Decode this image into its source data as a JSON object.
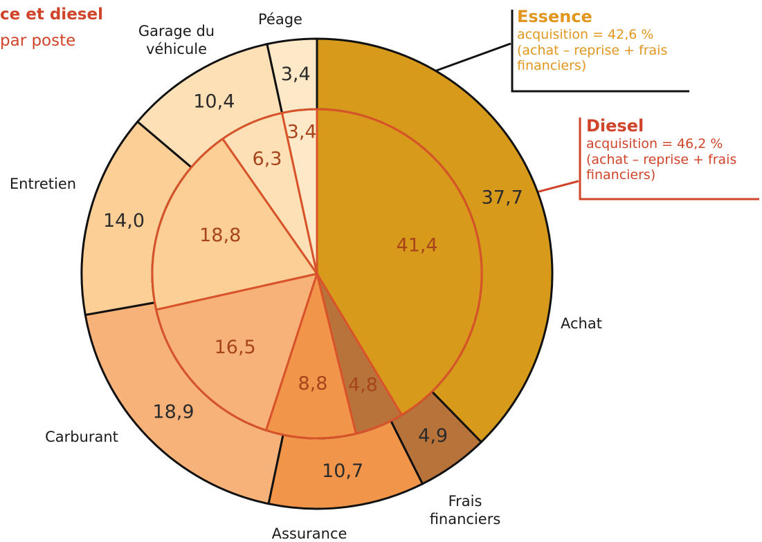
{
  "chart_data": {
    "type": "pie",
    "title": "ce et diesel",
    "subtitle": "par poste",
    "categories": [
      "Achat",
      "Frais financiers",
      "Assurance",
      "Carburant",
      "Entretien",
      "Garage du véhicule",
      "Péage"
    ],
    "colors": [
      "#d89a1a",
      "#b8733a",
      "#f0954a",
      "#f7b27a",
      "#fbcf95",
      "#fde0b5",
      "#fde8c8"
    ],
    "series": [
      {
        "name": "Essence",
        "values": [
          37.7,
          4.9,
          10.7,
          18.9,
          14.0,
          10.4,
          3.4
        ],
        "value_labels": [
          "37,7",
          "4,9",
          "10,7",
          "18,9",
          "14,0",
          "10,4",
          "3,4"
        ]
      },
      {
        "name": "Diesel",
        "values": [
          41.4,
          4.8,
          8.8,
          16.5,
          18.8,
          6.3,
          3.4
        ],
        "value_labels": [
          "41,4",
          "4,8",
          "8,8",
          "16,5",
          "18,8",
          "6,3",
          "3,4"
        ]
      }
    ],
    "annotations": [
      {
        "title": "Essence",
        "text": [
          "acquisition = 42,6 %",
          "(achat – reprise + frais financiers)"
        ]
      },
      {
        "title": "Diesel",
        "text": [
          "acquisition = 46,2 %",
          "(achat – reprise + frais financiers)"
        ]
      }
    ]
  }
}
